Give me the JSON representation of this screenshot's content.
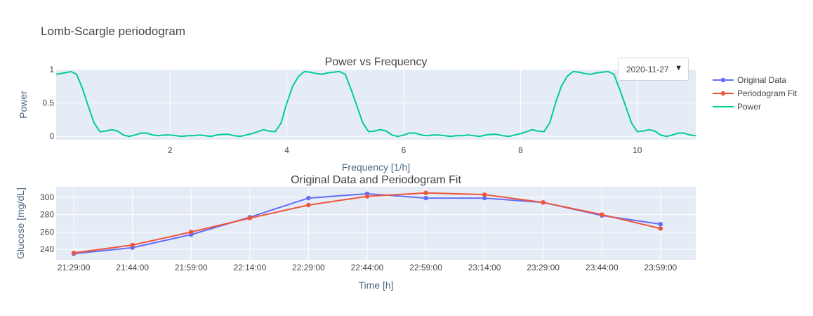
{
  "figure_title": "Lomb-Scargle periodogram",
  "dropdown": {
    "selected": "2020-11-27",
    "arrow_glyph": "▼"
  },
  "legend": [
    {
      "name": "Original Data",
      "color": "#636efa",
      "marker": true
    },
    {
      "name": "Periodogram Fit",
      "color": "#ef553b",
      "marker": true
    },
    {
      "name": "Power",
      "color": "#00cc96",
      "marker": false
    }
  ],
  "colors": {
    "plot_bg": "#e5ecf6",
    "grid": "#ffffff"
  },
  "chart_data": [
    {
      "type": "line",
      "title": "Power vs Frequency",
      "xlabel": "Frequency [1/h]",
      "ylabel": "Power",
      "xlim": [
        0.05,
        11.0
      ],
      "ylim": [
        -0.05,
        1.0
      ],
      "xticks": [
        2,
        4,
        6,
        8,
        10
      ],
      "xtick_labels": [
        "2",
        "4",
        "6",
        "8",
        "10"
      ],
      "yticks": [
        0,
        0.5,
        1
      ],
      "ytick_labels": [
        "0",
        "0.5",
        "1"
      ],
      "series": [
        {
          "name": "Power",
          "color": "#00cc96",
          "x": [
            0.05,
            0.2,
            0.3,
            0.4,
            0.5,
            0.6,
            0.7,
            0.8,
            0.9,
            1.0,
            1.1,
            1.2,
            1.3,
            1.4,
            1.5,
            1.6,
            1.7,
            1.8,
            1.9,
            2.0,
            2.1,
            2.2,
            2.3,
            2.4,
            2.5,
            2.6,
            2.7,
            2.8,
            2.9,
            3.0,
            3.1,
            3.2,
            3.3,
            3.4,
            3.5,
            3.6,
            3.7,
            3.8,
            3.9,
            4.0,
            4.1,
            4.2,
            4.3,
            4.4,
            4.5,
            4.6,
            4.7,
            4.8,
            4.9,
            5.0,
            5.1,
            5.2,
            5.3,
            5.4,
            5.5,
            5.6,
            5.7,
            5.8,
            5.9,
            6.0,
            6.1,
            6.2,
            6.3,
            6.4,
            6.5,
            6.6,
            6.7,
            6.8,
            6.9,
            7.0,
            7.1,
            7.2,
            7.3,
            7.4,
            7.5,
            7.6,
            7.7,
            7.8,
            7.9,
            8.0,
            8.1,
            8.2,
            8.3,
            8.4,
            8.5,
            8.6,
            8.7,
            8.8,
            8.9,
            9.0,
            9.1,
            9.2,
            9.3,
            9.4,
            9.5,
            9.6,
            9.7,
            9.8,
            9.9,
            10.0,
            10.1,
            10.2,
            10.3,
            10.4,
            10.5,
            10.6,
            10.7,
            10.8,
            10.9,
            11.0
          ],
          "y": [
            0.93,
            0.95,
            0.97,
            0.93,
            0.72,
            0.45,
            0.2,
            0.07,
            0.08,
            0.1,
            0.08,
            0.02,
            0.0,
            0.02,
            0.05,
            0.05,
            0.02,
            0.01,
            0.02,
            0.02,
            0.01,
            0.0,
            0.01,
            0.01,
            0.02,
            0.01,
            0.0,
            0.02,
            0.03,
            0.03,
            0.01,
            0.0,
            0.02,
            0.04,
            0.07,
            0.1,
            0.08,
            0.07,
            0.2,
            0.5,
            0.75,
            0.9,
            0.97,
            0.96,
            0.94,
            0.93,
            0.95,
            0.96,
            0.97,
            0.93,
            0.7,
            0.45,
            0.2,
            0.07,
            0.08,
            0.1,
            0.08,
            0.02,
            0.0,
            0.02,
            0.05,
            0.05,
            0.02,
            0.01,
            0.02,
            0.02,
            0.01,
            0.0,
            0.01,
            0.01,
            0.02,
            0.01,
            0.0,
            0.02,
            0.03,
            0.03,
            0.01,
            0.0,
            0.02,
            0.04,
            0.07,
            0.1,
            0.08,
            0.07,
            0.2,
            0.5,
            0.75,
            0.9,
            0.97,
            0.96,
            0.94,
            0.93,
            0.95,
            0.96,
            0.97,
            0.93,
            0.7,
            0.45,
            0.2,
            0.07,
            0.08,
            0.1,
            0.08,
            0.02,
            0.0,
            0.02,
            0.05,
            0.05,
            0.02,
            0.01
          ]
        }
      ]
    },
    {
      "type": "line",
      "title": "Original Data and Periodogram Fit",
      "xlabel": "Time [h]",
      "ylabel": "Glucose [mg/dL]",
      "categories": [
        "21:29:00",
        "21:44:00",
        "21:59:00",
        "22:14:00",
        "22:29:00",
        "22:44:00",
        "22:59:00",
        "23:14:00",
        "23:29:00",
        "23:44:00",
        "23:59:00"
      ],
      "xlim": [
        -0.3,
        10.6
      ],
      "ylim": [
        228,
        312
      ],
      "yticks": [
        240,
        260,
        280,
        300
      ],
      "ytick_labels": [
        "240",
        "260",
        "280",
        "300"
      ],
      "series": [
        {
          "name": "Original Data",
          "color": "#636efa",
          "values": [
            235,
            242,
            257,
            277,
            299,
            304,
            299,
            299,
            294,
            279,
            269
          ]
        },
        {
          "name": "Periodogram Fit",
          "color": "#ef553b",
          "values": [
            236,
            245,
            260,
            276,
            291,
            301,
            305,
            303,
            294,
            280,
            264
          ]
        }
      ]
    }
  ]
}
